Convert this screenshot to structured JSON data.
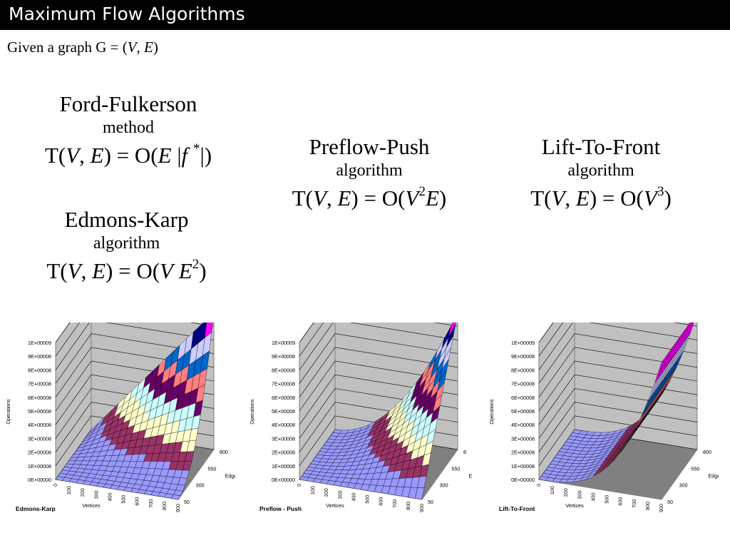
{
  "title": "Maximum Flow Algorithms",
  "given": {
    "prefix": "Given a graph G = (",
    "v": "V",
    "sep": ", ",
    "e": "E",
    "suffix": ")"
  },
  "algorithms": [
    {
      "name": "Ford-Fulkerson",
      "kind": "method",
      "formula": "T(V, E) = O(E |f *|)"
    },
    {
      "name": "Edmons-Karp",
      "kind": "algorithm",
      "formula": "T(V, E) = O(V E2)"
    },
    {
      "name": "Preflow-Push",
      "kind": "algorithm",
      "formula": "T(V, E) = O(V2E)"
    },
    {
      "name": "Lift-To-Front",
      "kind": "algorithm",
      "formula": "T(V, E) = O(V3)"
    }
  ],
  "chart_data": [
    {
      "type": "surface",
      "title": "Edmons-Karp",
      "zlabel": "Operations",
      "xlabel": "Vertices",
      "ylabel": "Edges",
      "x_ticks": [
        "0",
        "100",
        "200",
        "300",
        "400",
        "500",
        "600",
        "700",
        "800",
        "900"
      ],
      "y_ticks": [
        "50",
        "300",
        "550",
        "800"
      ],
      "z_ticks": [
        "0E+00000",
        "1E+00008",
        "2E+00008",
        "3E+00008",
        "4E+00008",
        "5E+00008",
        "6E+00008",
        "7E+00008",
        "8E+00008",
        "9E+00008",
        "1E+00009"
      ],
      "zlim": [
        0,
        1000000000
      ],
      "function": "V*E^2",
      "band_colors": [
        "#9999ff",
        "#993366",
        "#ffffcc",
        "#ccffff",
        "#660066",
        "#ff8080",
        "#0066cc",
        "#ccccff",
        "#000080",
        "#ff00ff"
      ]
    },
    {
      "type": "surface",
      "title": "Preflow - Push",
      "zlabel": "Operations",
      "xlabel": "Vertices",
      "ylabel": "E",
      "x_ticks": [
        "0",
        "100",
        "200",
        "300",
        "400",
        "500",
        "600",
        "700",
        "800",
        "900"
      ],
      "y_ticks": [
        "50",
        "300",
        "550",
        "8"
      ],
      "z_ticks": [
        "0E+00000",
        "1E+00008",
        "2E+00008",
        "3E+00008",
        "4E+00008",
        "5E+00008",
        "6E+00008",
        "7E+00008",
        "8E+00008",
        "9E+00008",
        "1E+00009"
      ],
      "zlim": [
        0,
        1000000000
      ],
      "function": "V^2*E",
      "band_colors": [
        "#9999ff",
        "#993366",
        "#ffffcc",
        "#ccffff",
        "#660066",
        "#ff8080",
        "#0066cc",
        "#ccccff",
        "#000080",
        "#ff00ff"
      ]
    },
    {
      "type": "surface",
      "title": "Lift-To-Front",
      "zlabel": "Operations",
      "xlabel": "Vertices",
      "ylabel": "Edges",
      "x_ticks": [
        "0",
        "100",
        "200",
        "300",
        "400",
        "500",
        "600",
        "700",
        "800",
        "900"
      ],
      "y_ticks": [
        "50",
        "300",
        "550",
        "800"
      ],
      "z_ticks": [
        "0E+00000",
        "1E+00008",
        "2E+00008",
        "3E+00008",
        "4E+00008",
        "5E+00008",
        "6E+00008",
        "7E+00008",
        "8E+00008",
        "9E+00008",
        "1E+00009"
      ],
      "zlim": [
        0,
        1000000000
      ],
      "function": "V^3",
      "band_colors": [
        "#9999ff",
        "#993366",
        "#ffffcc",
        "#ccffff",
        "#660066",
        "#ff8080",
        "#0066cc",
        "#ccccff",
        "#000080",
        "#ff00ff"
      ]
    }
  ]
}
